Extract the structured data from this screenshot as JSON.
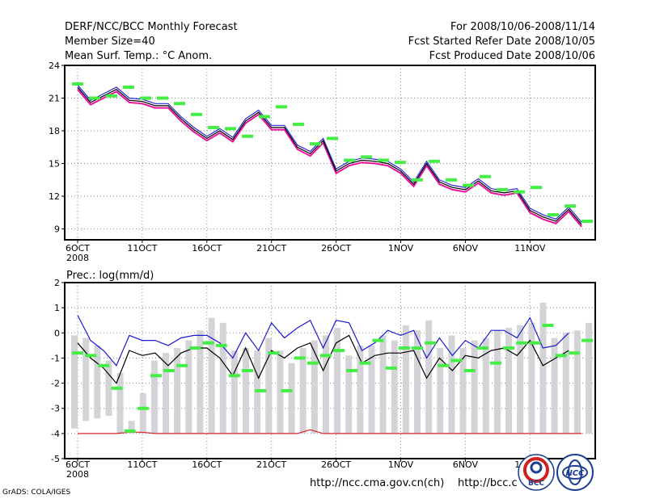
{
  "header": {
    "line1_left": "DERF/NCC/BCC Monthly Forecast",
    "line2_left": "Member Size=40",
    "line3_left": "Mean Surf. Temp.: °C Anom.",
    "line1_right": "For 2008/10/06-2008/11/14",
    "line2_right": "Fcst Started Refer Date 2008/10/05",
    "line3_right": "Fcst Produced Date 2008/10/06"
  },
  "footer": {
    "url1": "http://ncc.cma.gov.cn(ch)",
    "url2": "http://bcc.c",
    "credit": "GrADS: COLA/IGES",
    "logo1_text": "BCC",
    "logo2_text": "NCC"
  },
  "colors": {
    "temp_black": "#000000",
    "temp_magenta": "#e8139a",
    "temp_blue": "#2a2ad8",
    "green_marker": "#44ee44",
    "bar_gray": "#d4d4d8",
    "prec_upper": "#1a1ad0",
    "prec_lower": "#000000",
    "prec_floor": "#dd2222",
    "grid": "#888888"
  },
  "chart_data": [
    {
      "type": "line",
      "title": "Mean Surf. Temp.: °C Anom.",
      "x_tick_labels": [
        "6OCT",
        "11OCT",
        "16OCT",
        "21OCT",
        "26OCT",
        "1NOV",
        "6NOV",
        "11NOV"
      ],
      "x_tick_sublabel": "2008",
      "ylim": [
        8,
        24
      ],
      "y_ticks": [
        9,
        12,
        15,
        18,
        21,
        24
      ],
      "series": [
        {
          "name": "mean",
          "values": [
            22.0,
            20.6,
            21.2,
            21.8,
            20.8,
            20.7,
            20.3,
            20.3,
            19.1,
            18.1,
            17.3,
            18.0,
            17.2,
            18.9,
            19.7,
            18.3,
            18.3,
            16.5,
            15.9,
            17.1,
            14.3,
            15.0,
            15.3,
            15.2,
            15.0,
            14.3,
            13.1,
            15.0,
            13.3,
            12.8,
            12.6,
            13.4,
            12.5,
            12.3,
            12.5,
            10.7,
            10.1,
            9.7,
            10.8,
            9.4
          ]
        },
        {
          "name": "upper",
          "values": [
            22.2,
            20.8,
            21.4,
            22.0,
            21.0,
            20.9,
            20.5,
            20.5,
            19.3,
            18.3,
            17.5,
            18.2,
            17.4,
            19.1,
            19.9,
            18.5,
            18.5,
            16.7,
            16.1,
            17.3,
            14.5,
            15.2,
            15.5,
            15.4,
            15.2,
            14.5,
            13.3,
            15.2,
            13.5,
            13.0,
            12.8,
            13.6,
            12.7,
            12.5,
            12.7,
            10.9,
            10.3,
            9.9,
            11.0,
            9.6
          ]
        },
        {
          "name": "lower",
          "values": [
            21.8,
            20.4,
            21.0,
            21.6,
            20.6,
            20.5,
            20.1,
            20.1,
            18.9,
            17.9,
            17.1,
            17.8,
            17.0,
            18.7,
            19.5,
            18.1,
            18.1,
            16.3,
            15.7,
            16.9,
            14.1,
            14.8,
            15.1,
            15.0,
            14.8,
            14.1,
            12.9,
            14.8,
            13.1,
            12.6,
            12.4,
            13.2,
            12.3,
            12.1,
            12.3,
            10.5,
            9.9,
            9.5,
            10.6,
            9.2
          ]
        },
        {
          "name": "markers",
          "values": [
            22.3,
            21.0,
            21.2,
            22.0,
            21.0,
            21.0,
            20.5,
            19.5,
            18.3,
            18.2,
            17.5,
            19.3,
            20.2,
            18.6,
            16.8,
            17.3,
            15.3,
            15.6,
            15.3,
            15.1,
            13.5,
            15.2,
            13.5,
            13.0,
            13.8,
            12.6,
            12.4,
            12.8,
            10.3,
            11.1,
            9.7
          ]
        }
      ]
    },
    {
      "type": "bar",
      "title": "Prec.: log(mm/d)",
      "x_tick_labels": [
        "6OCT",
        "11OCT",
        "16OCT",
        "21OCT",
        "26OCT",
        "1NOV",
        "6NOV",
        "11NOV"
      ],
      "x_tick_sublabel": "2008",
      "ylim": [
        -5,
        2
      ],
      "y_ticks": [
        -5,
        -4,
        -3,
        -2,
        -1,
        0,
        1,
        2
      ],
      "bar_ranges": [
        [
          -3.8,
          -0.1
        ],
        [
          -3.5,
          -0.2
        ],
        [
          -3.4,
          -0.5
        ],
        [
          -3.3,
          -1.1
        ],
        [
          -4.0,
          -1.6
        ],
        [
          -4.0,
          -3.5
        ],
        [
          -4.0,
          -2.4
        ],
        [
          -4.0,
          -1.1
        ],
        [
          -4.0,
          -0.8
        ],
        [
          -4.0,
          -0.6
        ],
        [
          -4.0,
          -0.3
        ],
        [
          -4.0,
          0.1
        ],
        [
          -4.0,
          0.6
        ],
        [
          -4.0,
          0.4
        ],
        [
          -4.0,
          -0.7
        ],
        [
          -4.0,
          -0.6
        ],
        [
          -4.0,
          -0.7
        ],
        [
          -4.0,
          -0.2
        ],
        [
          -4.0,
          -0.7
        ],
        [
          -4.0,
          -1.2
        ],
        [
          -4.0,
          -0.6
        ],
        [
          -4.0,
          -0.3
        ],
        [
          -4.0,
          -0.1
        ],
        [
          -4.0,
          0.2
        ],
        [
          -4.0,
          -0.9
        ],
        [
          -4.0,
          -0.5
        ],
        [
          -4.0,
          -0.5
        ],
        [
          -4.0,
          -0.1
        ],
        [
          -4.0,
          -0.3
        ],
        [
          -4.0,
          0.3
        ],
        [
          -4.0,
          0.1
        ],
        [
          -4.0,
          0.5
        ],
        [
          -4.0,
          -0.6
        ],
        [
          -4.0,
          -0.1
        ],
        [
          -4.0,
          -0.6
        ],
        [
          -4.0,
          -0.3
        ],
        [
          -4.0,
          -0.2
        ],
        [
          -4.0,
          0.1
        ],
        [
          -4.0,
          0.2
        ],
        [
          -4.0,
          0.3
        ],
        [
          -4.0,
          0.4
        ],
        [
          -4.0,
          1.2
        ],
        [
          -4.0,
          -0.2
        ],
        [
          -4.0,
          0.0
        ],
        [
          -4.0,
          0.1
        ],
        [
          -4.0,
          0.4
        ]
      ],
      "series": [
        {
          "name": "upper",
          "values": [
            0.7,
            -0.3,
            -0.7,
            -1.3,
            -0.1,
            -0.3,
            -0.3,
            -0.5,
            -0.2,
            -0.1,
            -0.1,
            -0.4,
            -1.0,
            0.0,
            -0.7,
            0.4,
            -0.2,
            0.2,
            0.5,
            -0.6,
            0.5,
            0.4,
            -0.7,
            -0.4,
            0.1,
            -0.1,
            0.1,
            -1.0,
            -0.2,
            -0.9,
            -0.3,
            -0.6,
            0.1,
            0.1,
            -0.2,
            0.6,
            -0.6,
            -0.5,
            0.0
          ]
        },
        {
          "name": "lower",
          "values": [
            -0.4,
            -1.0,
            -1.4,
            -2.0,
            -0.7,
            -0.9,
            -0.8,
            -1.3,
            -0.8,
            -0.6,
            -0.6,
            -1.0,
            -1.7,
            -0.6,
            -1.8,
            -0.7,
            -1.0,
            -0.6,
            -0.4,
            -1.5,
            -0.4,
            -0.1,
            -1.2,
            -0.9,
            -0.8,
            -0.8,
            -0.7,
            -1.8,
            -1.0,
            -1.5,
            -0.9,
            -1.0,
            -0.7,
            -0.6,
            -0.9,
            -0.3,
            -1.3,
            -1.0,
            -0.7
          ]
        },
        {
          "name": "markers",
          "values": [
            -0.8,
            -0.9,
            -1.3,
            -2.2,
            -3.9,
            -3.0,
            -1.7,
            -1.5,
            -1.3,
            -0.6,
            -0.4,
            -0.5,
            -1.7,
            -1.5,
            -2.3,
            -0.8,
            -2.3,
            -1.0,
            -1.2,
            -0.9,
            -0.7,
            -1.5,
            -1.2,
            -0.3,
            -1.4,
            -0.6,
            -0.6,
            -0.4,
            -1.3,
            -1.1,
            -1.5,
            -0.6,
            -1.2,
            -0.6,
            -0.4,
            -0.4,
            0.3,
            -0.9,
            -0.8,
            -0.3
          ]
        },
        {
          "name": "floor",
          "values": [
            -4.0,
            -4.0,
            -4.0,
            -4.0,
            -3.95,
            -3.95,
            -4.0,
            -4.0,
            -4.0,
            -4.0,
            -4.0,
            -4.0,
            -4.0,
            -4.0,
            -4.0,
            -4.0,
            -4.0,
            -4.0,
            -3.85,
            -4.0,
            -4.0,
            -4.0,
            -4.0,
            -4.0,
            -4.0,
            -4.0,
            -4.0,
            -4.0,
            -4.0,
            -4.0,
            -4.0,
            -4.0,
            -4.0,
            -4.0,
            -4.0,
            -4.0,
            -4.0,
            -4.0,
            -4.0,
            -4.0
          ]
        }
      ]
    }
  ]
}
